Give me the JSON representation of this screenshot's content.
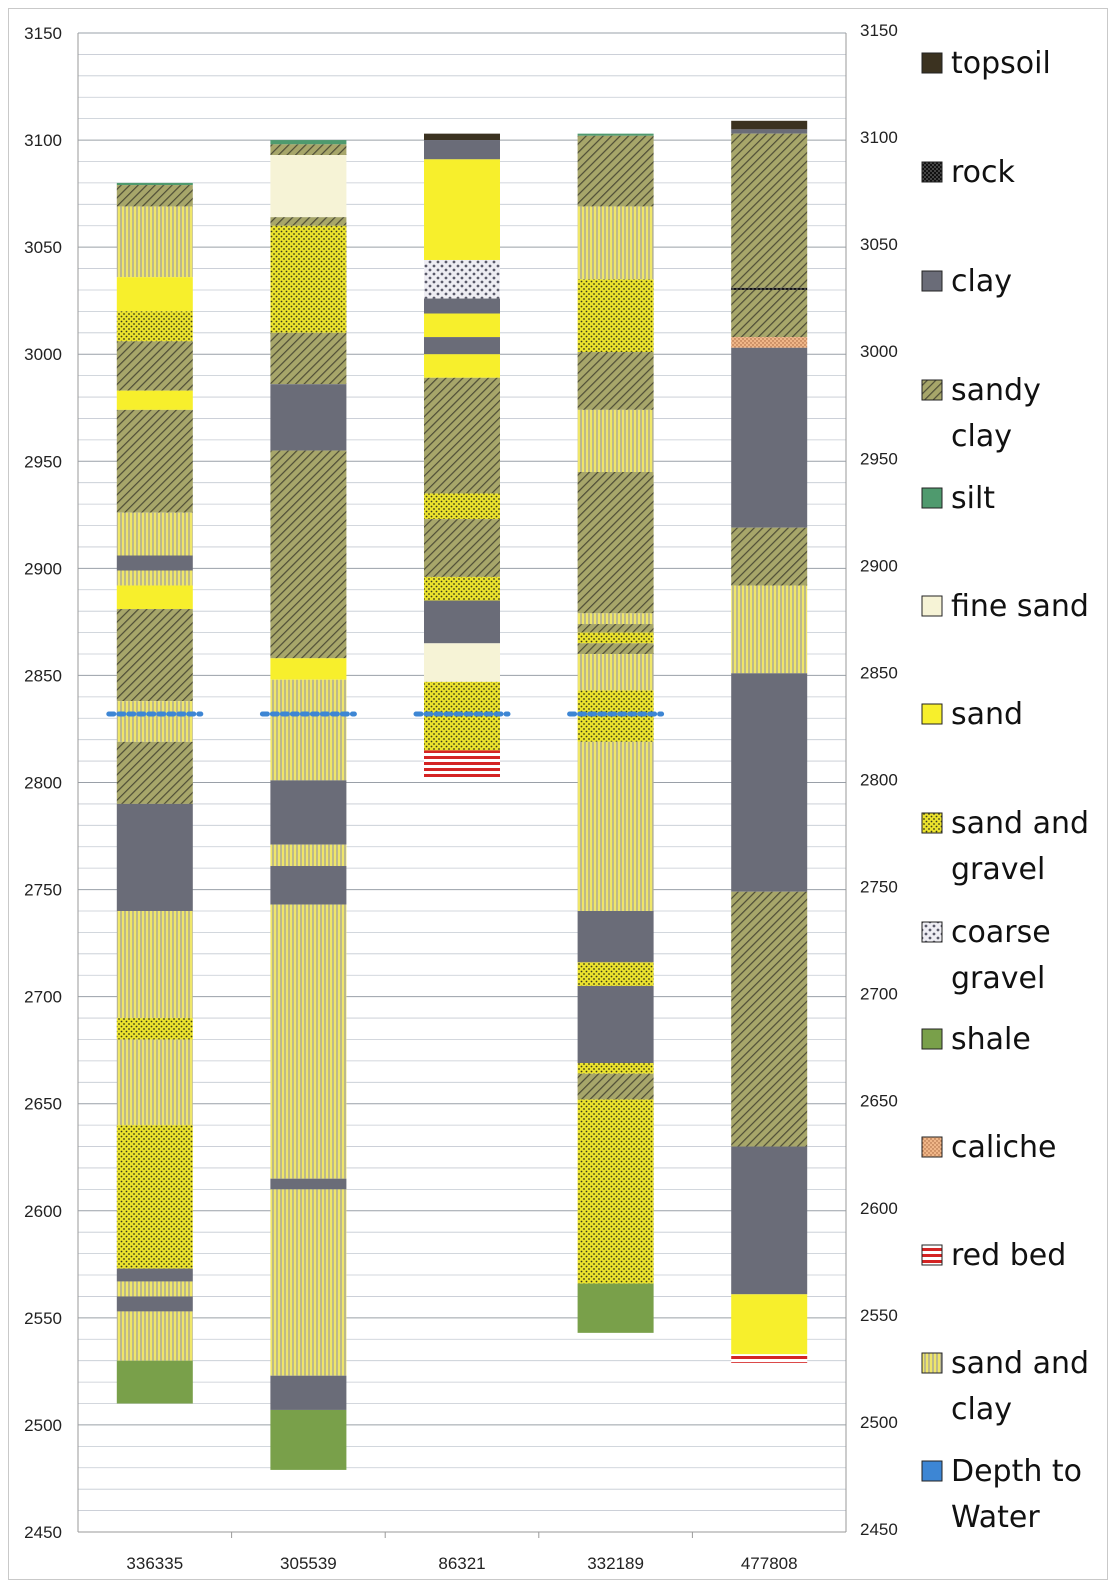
{
  "chart_data": {
    "type": "bar",
    "subtype": "stacked-strip-log",
    "categories": [
      "336335",
      "305539",
      "86321",
      "332189",
      "477808"
    ],
    "ylim": [
      2450,
      3150
    ],
    "yticks": [
      3150,
      3100,
      3050,
      3000,
      2950,
      2900,
      2850,
      2800,
      2750,
      2700,
      2650,
      2600,
      2550,
      2500,
      2450
    ],
    "grid": true,
    "legend_position": "right",
    "legend": [
      {
        "key": "topsoil",
        "lines": [
          "topsoil"
        ],
        "color": "#3b3220",
        "pattern": "solid"
      },
      {
        "key": "rock",
        "lines": [
          "rock"
        ],
        "color": "#111111",
        "pattern": "checker"
      },
      {
        "key": "clay",
        "lines": [
          "clay"
        ],
        "color": "#6a6c78",
        "pattern": "solid"
      },
      {
        "key": "sandy_clay",
        "lines": [
          "sandy",
          "clay"
        ],
        "color": "#8a8a50",
        "pattern": "diagonal"
      },
      {
        "key": "silt",
        "lines": [
          "silt"
        ],
        "color": "#4f9a6e",
        "pattern": "solid"
      },
      {
        "key": "fine_sand",
        "lines": [
          "fine sand"
        ],
        "color": "#f6f3d6",
        "pattern": "solid"
      },
      {
        "key": "sand",
        "lines": [
          "sand"
        ],
        "color": "#f7ef2c",
        "pattern": "solid"
      },
      {
        "key": "sand_gravel",
        "lines": [
          "sand and",
          "gravel"
        ],
        "color": "#e8e030",
        "pattern": "dots"
      },
      {
        "key": "coarse_gravel",
        "lines": [
          "coarse",
          "gravel"
        ],
        "color": "#ecebf2",
        "pattern": "coarse-dots"
      },
      {
        "key": "shale",
        "lines": [
          "shale"
        ],
        "color": "#79a04a",
        "pattern": "solid"
      },
      {
        "key": "caliche",
        "lines": [
          "caliche"
        ],
        "color": "#f0b688",
        "pattern": "dots"
      },
      {
        "key": "red_bed",
        "lines": [
          "red bed"
        ],
        "color": "#d42424",
        "pattern": "stripes"
      },
      {
        "key": "sand_clay",
        "lines": [
          "sand and",
          "clay"
        ],
        "color": "#e4dc56",
        "pattern": "vertical"
      },
      {
        "key": "water",
        "lines": [
          "Depth to",
          "Water"
        ],
        "color": "#3d86d4",
        "pattern": "solid"
      }
    ],
    "series": [
      {
        "well": "336335",
        "depth_to_water": 2832,
        "layers": [
          {
            "top": 3080,
            "bottom": 3079,
            "lith": "silt"
          },
          {
            "top": 3079,
            "bottom": 3069,
            "lith": "sandy_clay"
          },
          {
            "top": 3069,
            "bottom": 3036,
            "lith": "sand_clay"
          },
          {
            "top": 3036,
            "bottom": 3020,
            "lith": "sand"
          },
          {
            "top": 3020,
            "bottom": 3006,
            "lith": "sand_gravel"
          },
          {
            "top": 3006,
            "bottom": 2983,
            "lith": "sandy_clay"
          },
          {
            "top": 2983,
            "bottom": 2974,
            "lith": "sand"
          },
          {
            "top": 2974,
            "bottom": 2926,
            "lith": "sandy_clay"
          },
          {
            "top": 2926,
            "bottom": 2906,
            "lith": "sand_clay"
          },
          {
            "top": 2906,
            "bottom": 2899,
            "lith": "clay"
          },
          {
            "top": 2899,
            "bottom": 2892,
            "lith": "sand_clay"
          },
          {
            "top": 2892,
            "bottom": 2881,
            "lith": "sand"
          },
          {
            "top": 2881,
            "bottom": 2838,
            "lith": "sandy_clay"
          },
          {
            "top": 2838,
            "bottom": 2819,
            "lith": "sand_clay"
          },
          {
            "top": 2819,
            "bottom": 2790,
            "lith": "sandy_clay"
          },
          {
            "top": 2790,
            "bottom": 2740,
            "lith": "clay"
          },
          {
            "top": 2740,
            "bottom": 2690,
            "lith": "sand_clay"
          },
          {
            "top": 2690,
            "bottom": 2680,
            "lith": "sand_gravel"
          },
          {
            "top": 2680,
            "bottom": 2640,
            "lith": "sand_clay"
          },
          {
            "top": 2640,
            "bottom": 2573,
            "lith": "sand_gravel"
          },
          {
            "top": 2573,
            "bottom": 2567,
            "lith": "clay"
          },
          {
            "top": 2567,
            "bottom": 2560,
            "lith": "sand_clay"
          },
          {
            "top": 2560,
            "bottom": 2553,
            "lith": "clay"
          },
          {
            "top": 2553,
            "bottom": 2530,
            "lith": "sand_clay"
          },
          {
            "top": 2530,
            "bottom": 2510,
            "lith": "shale"
          }
        ]
      },
      {
        "well": "305539",
        "depth_to_water": 2832,
        "layers": [
          {
            "top": 3100,
            "bottom": 3098,
            "lith": "silt"
          },
          {
            "top": 3098,
            "bottom": 3093,
            "lith": "sandy_clay"
          },
          {
            "top": 3093,
            "bottom": 3064,
            "lith": "fine_sand"
          },
          {
            "top": 3064,
            "bottom": 3060,
            "lith": "sandy_clay"
          },
          {
            "top": 3060,
            "bottom": 3010,
            "lith": "sand_gravel"
          },
          {
            "top": 3010,
            "bottom": 2986,
            "lith": "sandy_clay"
          },
          {
            "top": 2986,
            "bottom": 2955,
            "lith": "clay"
          },
          {
            "top": 2955,
            "bottom": 2858,
            "lith": "sandy_clay"
          },
          {
            "top": 2858,
            "bottom": 2848,
            "lith": "sand"
          },
          {
            "top": 2848,
            "bottom": 2801,
            "lith": "sand_clay"
          },
          {
            "top": 2801,
            "bottom": 2771,
            "lith": "clay"
          },
          {
            "top": 2771,
            "bottom": 2761,
            "lith": "sand_clay"
          },
          {
            "top": 2761,
            "bottom": 2743,
            "lith": "clay"
          },
          {
            "top": 2743,
            "bottom": 2615,
            "lith": "sand_clay"
          },
          {
            "top": 2615,
            "bottom": 2610,
            "lith": "clay"
          },
          {
            "top": 2610,
            "bottom": 2523,
            "lith": "sand_clay"
          },
          {
            "top": 2523,
            "bottom": 2507,
            "lith": "clay"
          },
          {
            "top": 2507,
            "bottom": 2479,
            "lith": "shale"
          }
        ]
      },
      {
        "well": "86321",
        "depth_to_water": 2832,
        "layers": [
          {
            "top": 3103,
            "bottom": 3100,
            "lith": "topsoil"
          },
          {
            "top": 3100,
            "bottom": 3091,
            "lith": "clay"
          },
          {
            "top": 3091,
            "bottom": 3044,
            "lith": "sand"
          },
          {
            "top": 3044,
            "bottom": 3026,
            "lith": "coarse_gravel"
          },
          {
            "top": 3026,
            "bottom": 3019,
            "lith": "clay"
          },
          {
            "top": 3019,
            "bottom": 3008,
            "lith": "sand"
          },
          {
            "top": 3008,
            "bottom": 3000,
            "lith": "clay"
          },
          {
            "top": 3000,
            "bottom": 2989,
            "lith": "sand"
          },
          {
            "top": 2989,
            "bottom": 2935,
            "lith": "sandy_clay"
          },
          {
            "top": 2935,
            "bottom": 2923,
            "lith": "sand_gravel"
          },
          {
            "top": 2923,
            "bottom": 2896,
            "lith": "sandy_clay"
          },
          {
            "top": 2896,
            "bottom": 2885,
            "lith": "sand_gravel"
          },
          {
            "top": 2885,
            "bottom": 2865,
            "lith": "clay"
          },
          {
            "top": 2865,
            "bottom": 2847,
            "lith": "fine_sand"
          },
          {
            "top": 2847,
            "bottom": 2815,
            "lith": "sand_gravel"
          },
          {
            "top": 2815,
            "bottom": 2802,
            "lith": "red_bed"
          }
        ]
      },
      {
        "well": "332189",
        "depth_to_water": 2832,
        "layers": [
          {
            "top": 3103,
            "bottom": 3102,
            "lith": "silt"
          },
          {
            "top": 3102,
            "bottom": 3069,
            "lith": "sandy_clay"
          },
          {
            "top": 3069,
            "bottom": 3035,
            "lith": "sand_clay"
          },
          {
            "top": 3035,
            "bottom": 3001,
            "lith": "sand_gravel"
          },
          {
            "top": 3001,
            "bottom": 2974,
            "lith": "sandy_clay"
          },
          {
            "top": 2974,
            "bottom": 2945,
            "lith": "sand_clay"
          },
          {
            "top": 2945,
            "bottom": 2879,
            "lith": "sandy_clay"
          },
          {
            "top": 2879,
            "bottom": 2874,
            "lith": "sand_clay"
          },
          {
            "top": 2874,
            "bottom": 2870,
            "lith": "sandy_clay"
          },
          {
            "top": 2870,
            "bottom": 2865,
            "lith": "sand_gravel"
          },
          {
            "top": 2865,
            "bottom": 2860,
            "lith": "sandy_clay"
          },
          {
            "top": 2860,
            "bottom": 2843,
            "lith": "sand_clay"
          },
          {
            "top": 2843,
            "bottom": 2819,
            "lith": "sand_gravel"
          },
          {
            "top": 2819,
            "bottom": 2740,
            "lith": "sand_clay"
          },
          {
            "top": 2740,
            "bottom": 2716,
            "lith": "clay"
          },
          {
            "top": 2716,
            "bottom": 2705,
            "lith": "sand_gravel"
          },
          {
            "top": 2705,
            "bottom": 2669,
            "lith": "clay"
          },
          {
            "top": 2669,
            "bottom": 2664,
            "lith": "sand_gravel"
          },
          {
            "top": 2664,
            "bottom": 2652,
            "lith": "sandy_clay"
          },
          {
            "top": 2652,
            "bottom": 2566,
            "lith": "sand_gravel"
          },
          {
            "top": 2566,
            "bottom": 2543,
            "lith": "shale"
          }
        ]
      },
      {
        "well": "477808",
        "depth_to_water": null,
        "layers": [
          {
            "top": 3109,
            "bottom": 3105,
            "lith": "topsoil"
          },
          {
            "top": 3105,
            "bottom": 3103,
            "lith": "clay"
          },
          {
            "top": 3103,
            "bottom": 3031,
            "lith": "sandy_clay"
          },
          {
            "top": 3031,
            "bottom": 3030,
            "lith": "rock"
          },
          {
            "top": 3030,
            "bottom": 3008,
            "lith": "sandy_clay"
          },
          {
            "top": 3008,
            "bottom": 3003,
            "lith": "caliche"
          },
          {
            "top": 3003,
            "bottom": 2919,
            "lith": "clay"
          },
          {
            "top": 2919,
            "bottom": 2892,
            "lith": "sandy_clay"
          },
          {
            "top": 2892,
            "bottom": 2851,
            "lith": "sand_clay"
          },
          {
            "top": 2851,
            "bottom": 2749,
            "lith": "clay"
          },
          {
            "top": 2749,
            "bottom": 2630,
            "lith": "sandy_clay"
          },
          {
            "top": 2630,
            "bottom": 2561,
            "lith": "clay"
          },
          {
            "top": 2561,
            "bottom": 2533,
            "lith": "sand"
          },
          {
            "top": 2533,
            "bottom": 2529,
            "lith": "red_bed"
          }
        ]
      }
    ]
  }
}
